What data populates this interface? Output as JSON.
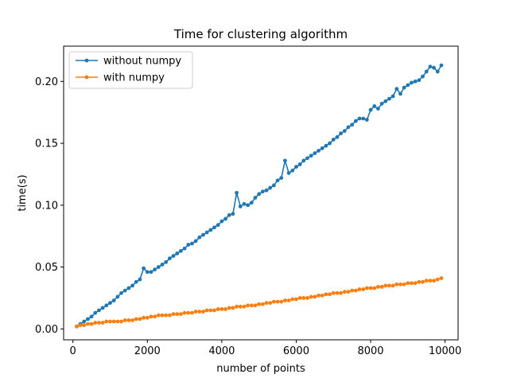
{
  "chart_data": {
    "type": "line",
    "title": "Time for clustering algorithm",
    "xlabel": "number of points",
    "ylabel": "time(s)",
    "xlim": [
      -250,
      10350
    ],
    "ylim": [
      -0.0088,
      0.2285
    ],
    "xticks": [
      0,
      2000,
      4000,
      6000,
      8000,
      10000
    ],
    "xtick_labels": [
      "0",
      "2000",
      "4000",
      "6000",
      "8000",
      "10000"
    ],
    "yticks": [
      0.0,
      0.05,
      0.1,
      0.15,
      0.2
    ],
    "ytick_labels": [
      "0.00",
      "0.05",
      "0.10",
      "0.15",
      "0.20"
    ],
    "grid": false,
    "legend_position": "top-left",
    "x": [
      100,
      200,
      300,
      400,
      500,
      600,
      700,
      800,
      900,
      1000,
      1100,
      1200,
      1300,
      1400,
      1500,
      1600,
      1700,
      1800,
      1900,
      2000,
      2100,
      2200,
      2300,
      2400,
      2500,
      2600,
      2700,
      2800,
      2900,
      3000,
      3100,
      3200,
      3300,
      3400,
      3500,
      3600,
      3700,
      3800,
      3900,
      4000,
      4100,
      4200,
      4300,
      4400,
      4500,
      4600,
      4700,
      4800,
      4900,
      5000,
      5100,
      5200,
      5300,
      5400,
      5500,
      5600,
      5700,
      5800,
      5900,
      6000,
      6100,
      6200,
      6300,
      6400,
      6500,
      6600,
      6700,
      6800,
      6900,
      7000,
      7100,
      7200,
      7300,
      7400,
      7500,
      7600,
      7700,
      7800,
      7900,
      8000,
      8100,
      8200,
      8300,
      8400,
      8500,
      8600,
      8700,
      8800,
      8900,
      9000,
      9100,
      9200,
      9300,
      9400,
      9500,
      9600,
      9700,
      9800,
      9900
    ],
    "series": [
      {
        "name": "without numpy",
        "color": "#1f77b4",
        "values": [
          0.002,
          0.004,
          0.006,
          0.008,
          0.01,
          0.013,
          0.015,
          0.017,
          0.019,
          0.021,
          0.023,
          0.026,
          0.029,
          0.031,
          0.033,
          0.035,
          0.038,
          0.04,
          0.049,
          0.046,
          0.046,
          0.048,
          0.05,
          0.052,
          0.054,
          0.057,
          0.059,
          0.061,
          0.063,
          0.065,
          0.068,
          0.069,
          0.071,
          0.074,
          0.076,
          0.078,
          0.08,
          0.082,
          0.084,
          0.087,
          0.089,
          0.092,
          0.093,
          0.11,
          0.099,
          0.101,
          0.1,
          0.102,
          0.106,
          0.109,
          0.111,
          0.112,
          0.114,
          0.116,
          0.12,
          0.122,
          0.136,
          0.126,
          0.128,
          0.131,
          0.133,
          0.136,
          0.138,
          0.14,
          0.142,
          0.144,
          0.146,
          0.148,
          0.15,
          0.153,
          0.155,
          0.158,
          0.16,
          0.163,
          0.165,
          0.168,
          0.17,
          0.17,
          0.169,
          0.177,
          0.18,
          0.178,
          0.182,
          0.184,
          0.186,
          0.188,
          0.194,
          0.19,
          0.195,
          0.197,
          0.199,
          0.2,
          0.201,
          0.204,
          0.208,
          0.212,
          0.211,
          0.208,
          0.213
        ]
      },
      {
        "name": "with numpy",
        "color": "#ff7f0e",
        "values": [
          0.002,
          0.003,
          0.003,
          0.004,
          0.004,
          0.005,
          0.005,
          0.005,
          0.006,
          0.006,
          0.006,
          0.006,
          0.006,
          0.007,
          0.007,
          0.007,
          0.008,
          0.008,
          0.009,
          0.009,
          0.01,
          0.01,
          0.011,
          0.011,
          0.011,
          0.011,
          0.012,
          0.012,
          0.012,
          0.013,
          0.013,
          0.013,
          0.014,
          0.014,
          0.014,
          0.015,
          0.015,
          0.015,
          0.016,
          0.016,
          0.016,
          0.017,
          0.017,
          0.018,
          0.018,
          0.018,
          0.019,
          0.019,
          0.019,
          0.02,
          0.02,
          0.021,
          0.021,
          0.022,
          0.022,
          0.022,
          0.023,
          0.023,
          0.024,
          0.024,
          0.025,
          0.025,
          0.025,
          0.026,
          0.026,
          0.027,
          0.027,
          0.028,
          0.028,
          0.029,
          0.029,
          0.029,
          0.03,
          0.03,
          0.031,
          0.031,
          0.032,
          0.032,
          0.033,
          0.033,
          0.033,
          0.034,
          0.034,
          0.035,
          0.035,
          0.035,
          0.036,
          0.036,
          0.036,
          0.037,
          0.037,
          0.037,
          0.038,
          0.038,
          0.039,
          0.039,
          0.039,
          0.04,
          0.041
        ]
      }
    ]
  }
}
